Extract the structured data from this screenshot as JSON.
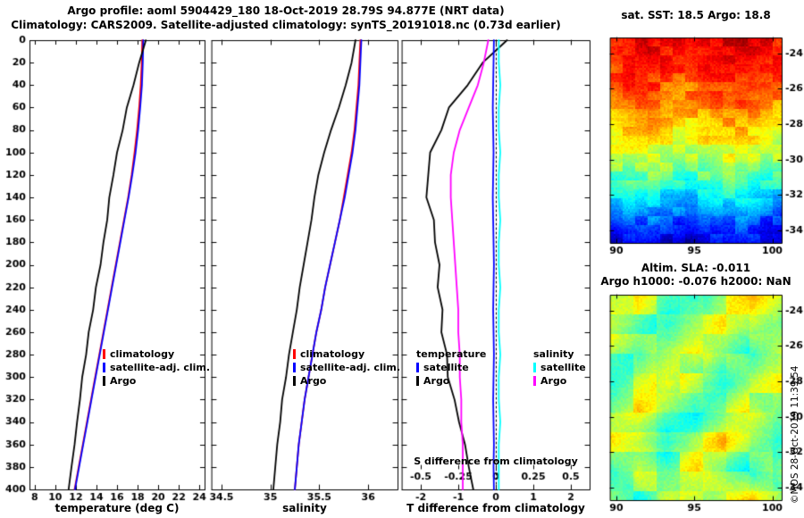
{
  "header": {
    "line1": "Argo profile: aoml 5904429_180 18-Oct-2019 28.79S 94.877E (NRT data)",
    "line2": "Climatology: CARS2009. Satellite-adjusted climatology: synTS_20191018.nc (0.73d earlier)"
  },
  "watermark": "©MOS 28-Oct-2019 11:39:54",
  "colors": {
    "climatology": "#ff0000",
    "satellite_adjusted": "#0000ff",
    "argo": "#000000",
    "salinity_satellite": "#00ffff",
    "salinity_argo": "#ff00ff"
  },
  "chart_data": [
    {
      "id": "temperature-profile",
      "type": "line",
      "xlabel": "temperature (deg C)",
      "xlim": [
        7.5,
        24.5
      ],
      "xticks": [
        8,
        10,
        12,
        14,
        16,
        18,
        20,
        22,
        24
      ],
      "ylim": [
        0,
        400
      ],
      "yticks": [
        0,
        20,
        40,
        60,
        80,
        100,
        120,
        140,
        160,
        180,
        200,
        220,
        240,
        260,
        280,
        300,
        320,
        340,
        360,
        380,
        400
      ],
      "depths": [
        0,
        20,
        40,
        60,
        80,
        100,
        120,
        140,
        160,
        180,
        200,
        220,
        240,
        260,
        280,
        300,
        320,
        340,
        360,
        380,
        400
      ],
      "series": [
        {
          "name": "climatology",
          "color": "#ff0000",
          "values": [
            18.45,
            18.4,
            18.3,
            18.15,
            17.95,
            17.7,
            17.42,
            17.08,
            16.68,
            16.28,
            15.88,
            15.48,
            15.08,
            14.68,
            14.28,
            13.88,
            13.48,
            13.08,
            12.68,
            12.28,
            11.88
          ]
        },
        {
          "name": "satellite-adj. clim.",
          "color": "#0000ff",
          "values": [
            18.55,
            18.5,
            18.42,
            18.25,
            18.05,
            17.8,
            17.48,
            17.12,
            16.72,
            16.32,
            15.92,
            15.52,
            15.12,
            14.72,
            14.32,
            13.92,
            13.52,
            13.12,
            12.72,
            12.32,
            11.92
          ]
        },
        {
          "name": "Argo",
          "color": "#000000",
          "values": [
            18.8,
            18.15,
            17.6,
            16.95,
            16.55,
            16.0,
            15.65,
            15.25,
            15.05,
            14.68,
            14.4,
            13.95,
            13.68,
            13.25,
            13.0,
            12.62,
            12.4,
            12.12,
            11.88,
            11.58,
            11.3
          ]
        }
      ],
      "legend": [
        {
          "label": "climatology",
          "color": "#ff0000"
        },
        {
          "label": "satellite-adj. clim.",
          "color": "#0000ff"
        },
        {
          "label": "Argo",
          "color": "#000000"
        }
      ]
    },
    {
      "id": "salinity-profile",
      "type": "line",
      "xlabel": "salinity",
      "xlim": [
        34.4,
        36.3
      ],
      "xticks": [
        34.5,
        35,
        35.5,
        36
      ],
      "ylim": [
        0,
        400
      ],
      "yticks": [
        0,
        20,
        40,
        60,
        80,
        100,
        120,
        140,
        160,
        180,
        200,
        220,
        240,
        260,
        280,
        300,
        320,
        340,
        360,
        380,
        400
      ],
      "depths": [
        0,
        20,
        40,
        60,
        80,
        100,
        120,
        140,
        160,
        180,
        200,
        220,
        240,
        260,
        280,
        300,
        320,
        340,
        360,
        380,
        400
      ],
      "series": [
        {
          "name": "climatology",
          "color": "#ff0000",
          "values": [
            35.92,
            35.91,
            35.9,
            35.88,
            35.86,
            35.83,
            35.79,
            35.75,
            35.71,
            35.66,
            35.61,
            35.56,
            35.52,
            35.47,
            35.43,
            35.39,
            35.35,
            35.32,
            35.29,
            35.27,
            35.25
          ]
        },
        {
          "name": "satellite-adj. clim.",
          "color": "#0000ff",
          "values": [
            35.93,
            35.92,
            35.91,
            35.89,
            35.87,
            35.84,
            35.8,
            35.76,
            35.71,
            35.66,
            35.61,
            35.56,
            35.52,
            35.47,
            35.43,
            35.39,
            35.35,
            35.32,
            35.29,
            35.27,
            35.25
          ]
        },
        {
          "name": "Argo",
          "color": "#000000",
          "values": [
            35.87,
            35.83,
            35.77,
            35.7,
            35.62,
            35.55,
            35.49,
            35.45,
            35.42,
            35.38,
            35.34,
            35.3,
            35.27,
            35.23,
            35.19,
            35.16,
            35.12,
            35.1,
            35.07,
            35.05,
            35.03
          ]
        }
      ],
      "legend": [
        {
          "label": "climatology",
          "color": "#ff0000"
        },
        {
          "label": "satellite-adj. clim.",
          "color": "#0000ff"
        },
        {
          "label": "Argo",
          "color": "#000000"
        }
      ]
    },
    {
      "id": "t-s-difference-profile",
      "type": "line",
      "xlabel": "T difference from climatology",
      "xlim": [
        -2.5,
        2.5
      ],
      "xticks": [
        -2,
        -1,
        0,
        1,
        2
      ],
      "ylim": [
        0,
        400
      ],
      "yticks": [
        0,
        20,
        40,
        60,
        80,
        100,
        120,
        140,
        160,
        180,
        200,
        220,
        240,
        260,
        280,
        300,
        320,
        340,
        360,
        380,
        400
      ],
      "depths": [
        0,
        20,
        40,
        60,
        80,
        100,
        120,
        140,
        160,
        180,
        200,
        220,
        240,
        260,
        280,
        300,
        320,
        340,
        360,
        380,
        400
      ],
      "zero_line": true,
      "secondary": {
        "label": "S difference from climatology",
        "ticks": [
          -0.5,
          -0.25,
          0,
          0.25,
          0.5
        ],
        "scale_to_primary": 4
      },
      "series": [
        {
          "name": "temperature Argo",
          "color": "#000000",
          "values": [
            0.3,
            -0.35,
            -0.75,
            -1.25,
            -1.45,
            -1.75,
            -1.8,
            -1.85,
            -1.65,
            -1.62,
            -1.5,
            -1.55,
            -1.42,
            -1.45,
            -1.3,
            -1.28,
            -1.1,
            -0.98,
            -0.82,
            -0.72,
            -0.6
          ]
        },
        {
          "name": "salinity Argo",
          "color": "#ff00ff",
          "axis": "secondary",
          "values": [
            -0.05,
            -0.08,
            -0.12,
            -0.18,
            -0.24,
            -0.28,
            -0.3,
            -0.3,
            -0.29,
            -0.28,
            -0.27,
            -0.26,
            -0.25,
            -0.25,
            -0.24,
            -0.24,
            -0.23,
            -0.23,
            -0.22,
            -0.22,
            -0.22
          ]
        },
        {
          "name": "temperature satellite",
          "color": "#0000ff",
          "values": [
            -0.05,
            -0.06,
            -0.07,
            -0.08,
            -0.07,
            -0.06,
            -0.07,
            -0.08,
            -0.07,
            -0.06,
            -0.05,
            -0.06,
            -0.07,
            -0.06,
            -0.05,
            -0.06,
            -0.07,
            -0.06,
            -0.05,
            -0.06,
            -0.05
          ]
        },
        {
          "name": "salinity satellite",
          "color": "#00ffff",
          "axis": "secondary",
          "values": [
            0.02,
            0.02,
            0.03,
            0.02,
            0.02,
            0.03,
            0.02,
            0.02,
            0.03,
            0.02,
            0.02,
            0.03,
            0.02,
            0.02,
            0.03,
            0.02,
            0.02,
            0.03,
            0.02,
            0.02,
            0.02
          ]
        }
      ],
      "legend_groups": [
        {
          "title": "temperature",
          "items": [
            {
              "label": "satellite",
              "color": "#0000ff"
            },
            {
              "label": "Argo",
              "color": "#000000"
            }
          ]
        },
        {
          "title": "salinity",
          "items": [
            {
              "label": "satellite",
              "color": "#00ffff"
            },
            {
              "label": "Argo",
              "color": "#ff00ff"
            }
          ]
        }
      ]
    },
    {
      "id": "sst-map",
      "type": "heatmap",
      "title": "sat. SST: 18.5  Argo: 18.8",
      "xlim": [
        89.6,
        100.6
      ],
      "xticks": [
        90,
        95,
        100
      ],
      "ylim": [
        -23.1,
        -34.7
      ],
      "yticks": [
        -24,
        -26,
        -28,
        -30,
        -32,
        -34
      ],
      "vmin": 11.8,
      "vmax": 21.6,
      "colormap": "jet",
      "seed": 3,
      "noise_blob": 1.1,
      "noise_speckle": 0.55,
      "blob": [
        14,
        10
      ],
      "grid": [
        [
          20.4,
          20.7,
          20.9,
          20.5,
          20.2,
          20.6,
          20.8,
          21.0,
          20.6,
          20.3
        ],
        [
          20.1,
          20.4,
          20.5,
          20.1,
          19.9,
          20.2,
          20.5,
          20.6,
          20.2,
          20.0
        ],
        [
          19.7,
          20.0,
          20.1,
          19.8,
          19.6,
          19.9,
          20.1,
          20.2,
          19.8,
          19.6
        ],
        [
          19.2,
          19.5,
          19.6,
          19.3,
          19.1,
          19.4,
          19.6,
          19.7,
          19.3,
          19.1
        ],
        [
          18.7,
          19.0,
          19.1,
          18.8,
          18.6,
          18.9,
          19.1,
          19.2,
          18.8,
          18.6
        ],
        [
          18.1,
          18.4,
          18.5,
          18.2,
          18.0,
          18.3,
          18.5,
          18.6,
          18.2,
          18.0
        ],
        [
          17.4,
          17.7,
          17.8,
          17.5,
          17.3,
          17.6,
          17.8,
          17.9,
          17.5,
          17.3
        ],
        [
          16.6,
          16.9,
          17.0,
          16.7,
          16.5,
          16.8,
          17.0,
          17.1,
          16.7,
          16.5
        ],
        [
          15.6,
          15.9,
          16.0,
          15.7,
          15.5,
          15.8,
          16.0,
          16.1,
          15.7,
          15.5
        ],
        [
          14.5,
          14.8,
          14.9,
          14.6,
          14.4,
          14.7,
          14.9,
          15.0,
          14.6,
          14.4
        ],
        [
          13.4,
          13.7,
          13.8,
          13.5,
          13.3,
          13.6,
          13.8,
          13.9,
          13.5,
          13.3
        ],
        [
          12.5,
          12.7,
          12.8,
          12.6,
          12.4,
          12.7,
          12.8,
          12.9,
          12.6,
          12.4
        ]
      ]
    },
    {
      "id": "sla-map",
      "type": "heatmap",
      "title": "Altim. SLA: -0.011",
      "subtitle": "Argo h1000: -0.076 h2000: NaN",
      "xlim": [
        89.6,
        100.6
      ],
      "xticks": [
        90,
        95,
        100
      ],
      "ylim": [
        -23.1,
        -34.7
      ],
      "yticks": [
        -24,
        -26,
        -28,
        -30,
        -32,
        -34
      ],
      "vmin": -0.35,
      "vmax": 0.4,
      "colormap": "jet",
      "seed": 11,
      "noise_blob": 0.1,
      "noise_speckle": 0.04,
      "blob": [
        26,
        22
      ],
      "grid": [
        [
          0.05,
          0.1,
          0.02,
          -0.02,
          0.08,
          0.15,
          0.05
        ],
        [
          0.12,
          0.04,
          -0.05,
          0.03,
          0.12,
          0.06,
          -0.02
        ],
        [
          0.03,
          -0.04,
          0.06,
          0.14,
          0.04,
          -0.06,
          0.04
        ],
        [
          -0.02,
          0.05,
          0.12,
          0.02,
          -0.08,
          0.03,
          0.1
        ],
        [
          0.06,
          0.14,
          0.03,
          -0.05,
          0.04,
          0.12,
          0.02
        ],
        [
          0.1,
          0.02,
          -0.07,
          0.05,
          0.15,
          0.04,
          -0.03
        ],
        [
          0.0,
          0.08,
          0.04,
          0.12,
          0.02,
          -0.05,
          0.06
        ],
        [
          0.05,
          -0.03,
          0.1,
          0.03,
          0.08,
          0.14,
          0.0
        ]
      ]
    }
  ]
}
